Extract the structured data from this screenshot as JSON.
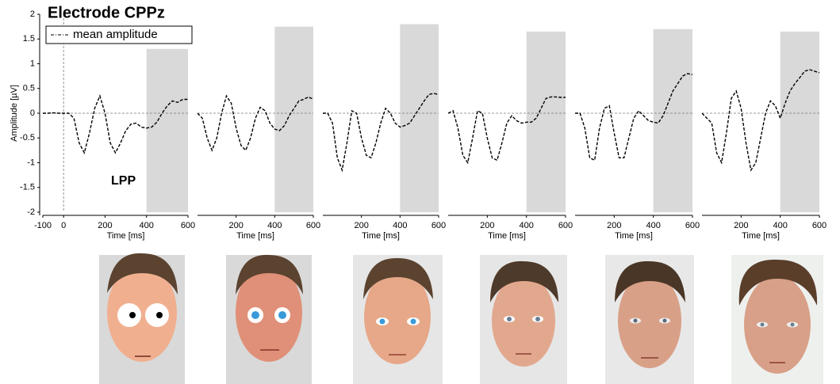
{
  "chart_data": [
    {
      "type": "line",
      "title": "Electrode CPPz",
      "annotation": "LPP",
      "ylabel": "Amplitude [µV]",
      "xlabel": "Time [ms]",
      "x": [
        -100,
        -75,
        -50,
        -25,
        0,
        25,
        50,
        75,
        100,
        125,
        150,
        175,
        200,
        225,
        250,
        275,
        300,
        325,
        350,
        375,
        400,
        425,
        450,
        475,
        500,
        525,
        550,
        575,
        600
      ],
      "series": [
        {
          "name": "mean amplitude",
          "color": "#000000",
          "values": [
            0,
            0,
            0.01,
            0,
            0,
            0,
            -0.1,
            -0.6,
            -0.8,
            -0.4,
            0.1,
            0.35,
            0,
            -0.6,
            -0.8,
            -0.6,
            -0.35,
            -0.22,
            -0.2,
            -0.28,
            -0.3,
            -0.28,
            -0.18,
            0,
            0.15,
            0.25,
            0.22,
            0.28,
            0.28
          ]
        }
      ],
      "xlim": [
        -100,
        600
      ],
      "xticks": [
        -100,
        0,
        200,
        400,
        600
      ],
      "ylim": [
        -2,
        2
      ],
      "yticks": [
        2,
        1.5,
        1,
        0.5,
        0,
        -0.5,
        -1,
        -1.5,
        -2
      ],
      "shade_x": [
        400,
        600
      ],
      "shade_y": [
        -2,
        1.3
      ]
    },
    {
      "type": "line",
      "xlabel": "Time [ms]",
      "x": [
        0,
        25,
        50,
        75,
        100,
        125,
        150,
        175,
        200,
        225,
        250,
        275,
        300,
        325,
        350,
        375,
        400,
        425,
        450,
        475,
        500,
        525,
        550,
        575,
        600
      ],
      "series": [
        {
          "color": "#000000",
          "values": [
            0,
            -0.1,
            -0.5,
            -0.75,
            -0.5,
            0,
            0.35,
            0.2,
            -0.3,
            -0.65,
            -0.75,
            -0.5,
            -0.1,
            0.12,
            0.05,
            -0.2,
            -0.32,
            -0.35,
            -0.25,
            -0.05,
            0.1,
            0.25,
            0.28,
            0.33,
            0.28
          ]
        }
      ],
      "xlim": [
        0,
        600
      ],
      "xticks": [
        200,
        400,
        600
      ],
      "ylim": [
        -2,
        2
      ],
      "shade_x": [
        400,
        600
      ],
      "shade_y": [
        -2,
        1.75
      ]
    },
    {
      "type": "line",
      "xlabel": "Time [ms]",
      "x": [
        0,
        25,
        50,
        75,
        100,
        125,
        150,
        175,
        200,
        225,
        250,
        275,
        300,
        325,
        350,
        375,
        400,
        425,
        450,
        475,
        500,
        525,
        550,
        575,
        600
      ],
      "series": [
        {
          "color": "#000000",
          "values": [
            0,
            0,
            -0.2,
            -0.9,
            -1.15,
            -0.6,
            0.05,
            0,
            -0.5,
            -0.85,
            -0.9,
            -0.6,
            -0.2,
            0.1,
            0,
            -0.2,
            -0.28,
            -0.25,
            -0.2,
            -0.05,
            0.1,
            0.25,
            0.38,
            0.4,
            0.38
          ]
        }
      ],
      "xlim": [
        0,
        600
      ],
      "xticks": [
        200,
        400,
        600
      ],
      "ylim": [
        -2,
        2
      ],
      "shade_x": [
        400,
        600
      ],
      "shade_y": [
        -2,
        1.8
      ]
    },
    {
      "type": "line",
      "xlabel": "Time [ms]",
      "x": [
        0,
        25,
        50,
        75,
        100,
        125,
        150,
        175,
        200,
        225,
        250,
        275,
        300,
        325,
        350,
        375,
        400,
        425,
        450,
        475,
        500,
        525,
        550,
        575,
        600
      ],
      "series": [
        {
          "color": "#000000",
          "values": [
            0,
            0.05,
            -0.3,
            -0.85,
            -1,
            -0.5,
            0.05,
            0,
            -0.5,
            -0.9,
            -0.95,
            -0.6,
            -0.2,
            -0.05,
            -0.15,
            -0.2,
            -0.18,
            -0.18,
            -0.1,
            0.1,
            0.3,
            0.33,
            0.33,
            0.32,
            0.32
          ]
        }
      ],
      "xlim": [
        0,
        600
      ],
      "xticks": [
        200,
        400,
        600
      ],
      "ylim": [
        -2,
        2
      ],
      "shade_x": [
        400,
        600
      ],
      "shade_y": [
        -2,
        1.65
      ]
    },
    {
      "type": "line",
      "xlabel": "Time [ms]",
      "x": [
        0,
        25,
        50,
        75,
        100,
        125,
        150,
        175,
        200,
        225,
        250,
        275,
        300,
        325,
        350,
        375,
        400,
        425,
        450,
        475,
        500,
        525,
        550,
        575,
        600
      ],
      "series": [
        {
          "color": "#000000",
          "values": [
            0,
            0,
            -0.3,
            -0.9,
            -0.95,
            -0.3,
            0.1,
            0.15,
            -0.4,
            -0.9,
            -0.9,
            -0.5,
            -0.1,
            0.05,
            -0.05,
            -0.15,
            -0.18,
            -0.2,
            -0.05,
            0.2,
            0.45,
            0.6,
            0.75,
            0.8,
            0.78
          ]
        }
      ],
      "xlim": [
        0,
        600
      ],
      "xticks": [
        200,
        400,
        600
      ],
      "ylim": [
        -2,
        2
      ],
      "shade_x": [
        400,
        600
      ],
      "shade_y": [
        -2,
        1.7
      ]
    },
    {
      "type": "line",
      "xlabel": "Time [ms]",
      "x": [
        0,
        25,
        50,
        75,
        100,
        125,
        150,
        175,
        200,
        225,
        250,
        275,
        300,
        325,
        350,
        375,
        400,
        425,
        450,
        475,
        500,
        525,
        550,
        575,
        600
      ],
      "series": [
        {
          "color": "#000000",
          "values": [
            0,
            -0.1,
            -0.2,
            -0.8,
            -1,
            -0.4,
            0.3,
            0.45,
            0.1,
            -0.6,
            -1.15,
            -1,
            -0.5,
            0,
            0.25,
            0.15,
            -0.1,
            0.2,
            0.45,
            0.6,
            0.72,
            0.85,
            0.88,
            0.85,
            0.82
          ]
        }
      ],
      "xlim": [
        0,
        600
      ],
      "xticks": [
        200,
        400,
        600
      ],
      "ylim": [
        -2,
        2
      ],
      "shade_x": [
        400,
        600
      ],
      "shade_y": [
        -2,
        1.65
      ]
    }
  ]
}
